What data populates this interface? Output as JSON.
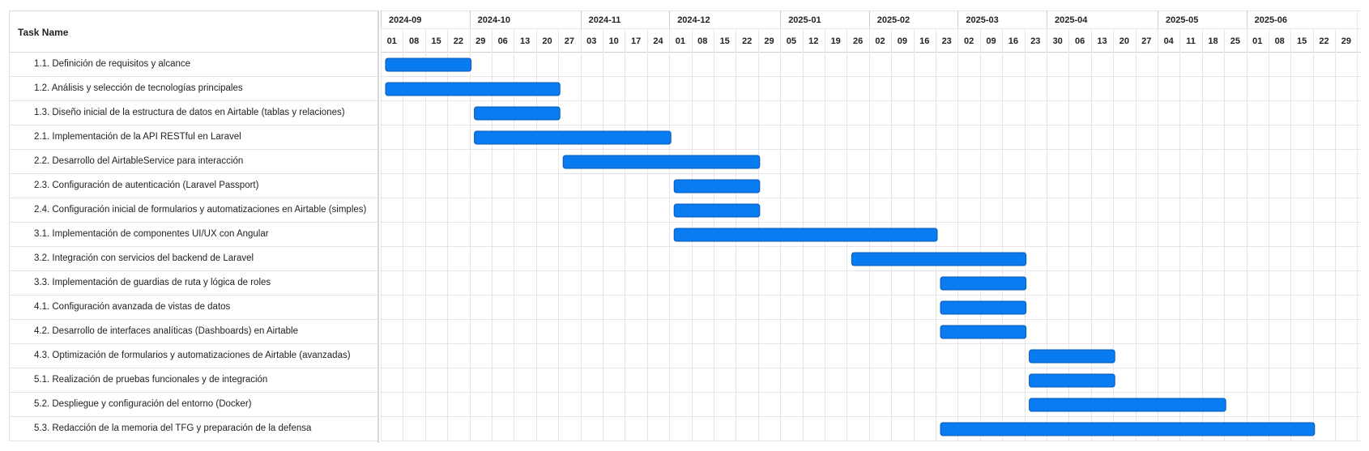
{
  "header": {
    "task_name_label": "Task Name"
  },
  "colors": {
    "bar": "#0a7cf2",
    "bar_border": "#0558b8",
    "grid": "#e6e6e6"
  },
  "timeline": {
    "months": [
      {
        "label": "2024-09",
        "start_week": 0
      },
      {
        "label": "2024-10",
        "start_week": 4
      },
      {
        "label": "2024-11",
        "start_week": 9
      },
      {
        "label": "2024-12",
        "start_week": 13
      },
      {
        "label": "2025-01",
        "start_week": 18
      },
      {
        "label": "2025-02",
        "start_week": 22
      },
      {
        "label": "2025-03",
        "start_week": 26
      },
      {
        "label": "2025-04",
        "start_week": 30
      },
      {
        "label": "2025-05",
        "start_week": 35
      },
      {
        "label": "2025-06",
        "start_week": 39
      }
    ],
    "weeks": [
      "01",
      "08",
      "15",
      "22",
      "29",
      "06",
      "13",
      "20",
      "27",
      "03",
      "10",
      "17",
      "24",
      "01",
      "08",
      "15",
      "22",
      "29",
      "05",
      "12",
      "19",
      "26",
      "02",
      "09",
      "16",
      "23",
      "02",
      "09",
      "16",
      "23",
      "30",
      "06",
      "13",
      "20",
      "27",
      "04",
      "11",
      "18",
      "25",
      "01",
      "08",
      "15",
      "22",
      "29"
    ]
  },
  "tasks": [
    {
      "name": "1.1. Definición de requisitos y alcance",
      "start": "2024-09-01",
      "end": "2024-09-29"
    },
    {
      "name": "1.2. Análisis y selección de tecnologías principales",
      "start": "2024-09-01",
      "end": "2024-10-27"
    },
    {
      "name": "1.3. Diseño inicial de la estructura de datos en Airtable (tablas y relaciones)",
      "start": "2024-09-29",
      "end": "2024-10-27"
    },
    {
      "name": "2.1. Implementación de la API RESTful en Laravel",
      "start": "2024-09-29",
      "end": "2024-12-01"
    },
    {
      "name": "2.2. Desarrollo del AirtableService para interacción",
      "start": "2024-10-27",
      "end": "2024-12-29"
    },
    {
      "name": "2.3. Configuración de autenticación (Laravel Passport)",
      "start": "2024-12-01",
      "end": "2024-12-29"
    },
    {
      "name": "2.4. Configuración inicial de formularios y automatizaciones en Airtable (simples)",
      "start": "2024-12-01",
      "end": "2024-12-29"
    },
    {
      "name": "3.1. Implementación de componentes UI/UX con Angular",
      "start": "2024-12-01",
      "end": "2025-02-23"
    },
    {
      "name": "3.2. Integración con servicios del backend de Laravel",
      "start": "2025-01-26",
      "end": "2025-03-23"
    },
    {
      "name": "3.3. Implementación de guardias de ruta y lógica de roles",
      "start": "2025-02-23",
      "end": "2025-03-23"
    },
    {
      "name": "4.1. Configuración avanzada de vistas de datos",
      "start": "2025-02-23",
      "end": "2025-03-23"
    },
    {
      "name": "4.2. Desarrollo de interfaces analíticas (Dashboards) en Airtable",
      "start": "2025-02-23",
      "end": "2025-03-23"
    },
    {
      "name": "4.3. Optimización de formularios y automatizaciones de Airtable (avanzadas)",
      "start": "2025-03-23",
      "end": "2025-04-20"
    },
    {
      "name": "5.1. Realización de pruebas funcionales y de integración",
      "start": "2025-03-23",
      "end": "2025-04-20"
    },
    {
      "name": "5.2. Despliegue y configuración del entorno (Docker)",
      "start": "2025-03-23",
      "end": "2025-05-25"
    },
    {
      "name": "5.3. Redacción de la memoria del TFG y preparación de la defensa",
      "start": "2025-02-23",
      "end": "2025-06-22"
    }
  ]
}
